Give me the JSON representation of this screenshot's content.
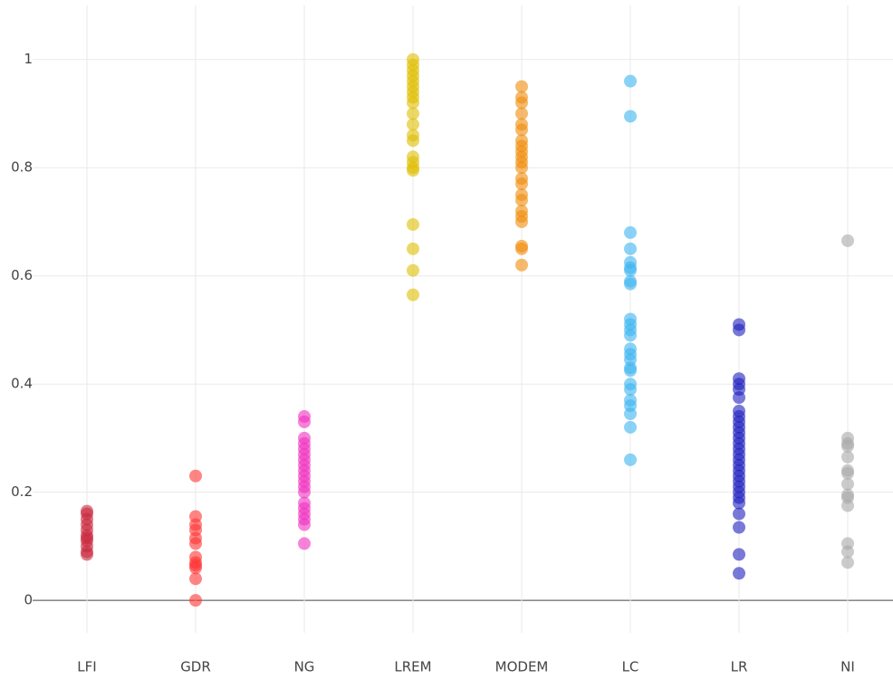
{
  "chart_data": {
    "type": "scatter",
    "series": [
      {
        "name": "LFI",
        "color": "#c8283c",
        "values": [
          0.165,
          0.16,
          0.15,
          0.14,
          0.13,
          0.12,
          0.115,
          0.11,
          0.1,
          0.09,
          0.085
        ]
      },
      {
        "name": "GDR",
        "color": "#ff3434",
        "values": [
          0.23,
          0.155,
          0.14,
          0.13,
          0.115,
          0.105,
          0.08,
          0.07,
          0.065,
          0.06,
          0.04,
          0.0
        ]
      },
      {
        "name": "NG",
        "color": "#f030c0",
        "values": [
          0.34,
          0.33,
          0.3,
          0.29,
          0.28,
          0.27,
          0.26,
          0.25,
          0.24,
          0.23,
          0.22,
          0.21,
          0.2,
          0.18,
          0.17,
          0.16,
          0.15,
          0.14,
          0.105
        ]
      },
      {
        "name": "LREM",
        "color": "#e0be00",
        "values": [
          1.0,
          0.99,
          0.98,
          0.97,
          0.96,
          0.95,
          0.94,
          0.93,
          0.92,
          0.9,
          0.88,
          0.86,
          0.85,
          0.82,
          0.81,
          0.8,
          0.795,
          0.695,
          0.65,
          0.61,
          0.565
        ]
      },
      {
        "name": "MODEM",
        "color": "#f08c0a",
        "values": [
          0.95,
          0.93,
          0.92,
          0.9,
          0.88,
          0.87,
          0.85,
          0.84,
          0.83,
          0.82,
          0.81,
          0.8,
          0.78,
          0.77,
          0.75,
          0.74,
          0.72,
          0.71,
          0.7,
          0.655,
          0.65,
          0.62
        ]
      },
      {
        "name": "LC",
        "color": "#3cb4f0",
        "values": [
          0.96,
          0.895,
          0.68,
          0.65,
          0.625,
          0.615,
          0.61,
          0.59,
          0.585,
          0.52,
          0.51,
          0.5,
          0.49,
          0.465,
          0.455,
          0.445,
          0.43,
          0.425,
          0.4,
          0.39,
          0.37,
          0.36,
          0.345,
          0.32,
          0.26
        ]
      },
      {
        "name": "LR",
        "color": "#2020c0",
        "values": [
          0.51,
          0.5,
          0.41,
          0.4,
          0.39,
          0.375,
          0.35,
          0.34,
          0.33,
          0.32,
          0.31,
          0.3,
          0.29,
          0.28,
          0.27,
          0.26,
          0.25,
          0.24,
          0.23,
          0.22,
          0.21,
          0.2,
          0.19,
          0.18,
          0.16,
          0.135,
          0.085,
          0.05
        ]
      },
      {
        "name": "NI",
        "color": "#a8a8a8",
        "values": [
          0.665,
          0.3,
          0.29,
          0.285,
          0.265,
          0.24,
          0.235,
          0.215,
          0.195,
          0.19,
          0.175,
          0.105,
          0.09,
          0.07
        ]
      }
    ],
    "ylim": [
      -0.06,
      1.1
    ],
    "yticks": [
      0,
      0.2,
      0.4,
      0.6,
      0.8,
      1
    ],
    "grid": true
  }
}
